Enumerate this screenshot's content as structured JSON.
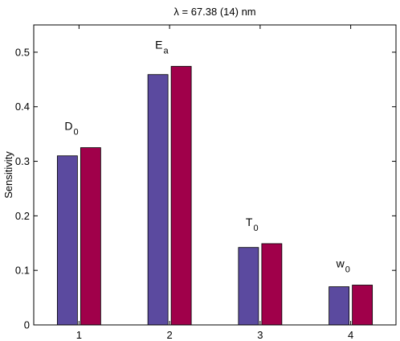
{
  "chart_data": {
    "type": "bar",
    "title": "λ = 67.38 (14) nm",
    "xlabel": "",
    "ylabel": "Sensitivity",
    "categories": [
      "1",
      "2",
      "3",
      "4"
    ],
    "series": [
      {
        "color": "#5b4a9f",
        "values": [
          0.31,
          0.459,
          0.142,
          0.07
        ]
      },
      {
        "color": "#a0004a",
        "values": [
          0.325,
          0.474,
          0.149,
          0.073
        ]
      }
    ],
    "ylim": [
      0,
      0.55
    ],
    "yticks": [
      0,
      0.1,
      0.2,
      0.3,
      0.4,
      0.5
    ],
    "ytick_labels": [
      "0",
      "0.1",
      "0.2",
      "0.3",
      "0.4",
      "0.5"
    ],
    "grid": false,
    "annotations": [
      {
        "category": "1",
        "main": "D",
        "sub": "0"
      },
      {
        "category": "2",
        "main": "E",
        "sub": "a"
      },
      {
        "category": "3",
        "main": "T",
        "sub": "0"
      },
      {
        "category": "4",
        "main": "w",
        "sub": "0"
      }
    ]
  }
}
